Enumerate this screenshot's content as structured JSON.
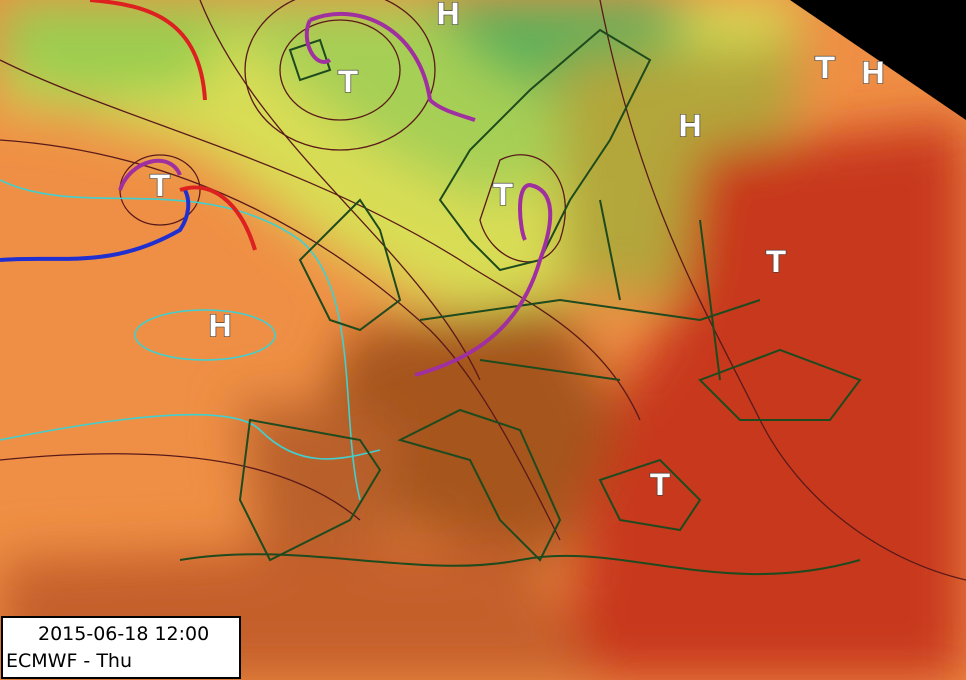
{
  "pressure_centers": [
    "H",
    "T",
    "T",
    "H",
    "T",
    "H",
    "T",
    "H",
    "T",
    "T"
  ],
  "info_box": {
    "datetime": "2015-06-18 12:00",
    "model": "ECMWF - Thu"
  }
}
